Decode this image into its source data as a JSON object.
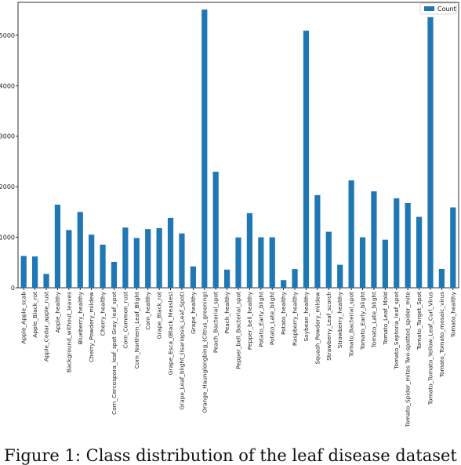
{
  "chart_data": {
    "type": "bar",
    "categories": [
      "Apple_Apple_scab",
      "Apple_Black_rot",
      "Apple_Cedar_apple_rust",
      "Apple_healthy",
      "Background_without_leaves",
      "Blueberry_healthy",
      "Cherry_Powdery_mildew",
      "Cherry_healthy",
      "Corn_Cercospora_leaf_spot Gray_leaf_spot",
      "Corn_Common_rust",
      "Corn_Northern_Leaf_Blight",
      "Corn_healthy",
      "Grape_Black_rot",
      "Grape_Esca_(Black_Measles)",
      "Grape_Leaf_blight_(Isariopsis_Leaf_Spot)",
      "Grape_healthy",
      "Orange_Haunglongbing_(Citrus_greening)",
      "Peach_Bacterial_spot",
      "Peach_healthy",
      "Pepper_bell_Bacterial_spot",
      "Pepper_bell_healthy",
      "Potato_Early_blight",
      "Potato_Late_blight",
      "Potato_healthy",
      "Raspberry_healthy",
      "Soybean_healthy",
      "Squash_Powdery_mildew",
      "Strawberry_Leaf_scorch",
      "Strawberry_healthy",
      "Tomato_Bacterial_spot",
      "Tomato_Early_blight",
      "Tomato_Late_blight",
      "Tomato_Leaf_Mold",
      "Tomato_Septoria_leaf_spot",
      "Tomato_Spider_mites Two-spotted_spider_mite",
      "Tomato_Target_Spot",
      "Tomato_Tomato_Yellow_Leaf_Curl_Virus",
      "Tomato_Tomato_mosaic_virus",
      "Tomato_healthy"
    ],
    "series": [
      {
        "name": "Count",
        "color": "#1f77b4",
        "values": [
          630,
          621,
          275,
          1645,
          1143,
          1502,
          1052,
          854,
          513,
          1192,
          985,
          1162,
          1180,
          1383,
          1076,
          423,
          5507,
          2297,
          360,
          997,
          1478,
          1000,
          1000,
          152,
          371,
          5090,
          1835,
          1109,
          456,
          2127,
          1000,
          1909,
          952,
          1771,
          1676,
          1404,
          5357,
          373,
          1591
        ]
      }
    ],
    "ylim": [
      0,
      5650
    ],
    "yticks": [
      0,
      1000,
      2000,
      3000,
      4000,
      5000
    ],
    "ytick_labels": [
      "0",
      "1000",
      "2000",
      "3000",
      "4000",
      "5000"
    ],
    "legend_position": "top-right",
    "grid": false
  },
  "caption": "Figure 1: Class distribution of the leaf disease dataset"
}
